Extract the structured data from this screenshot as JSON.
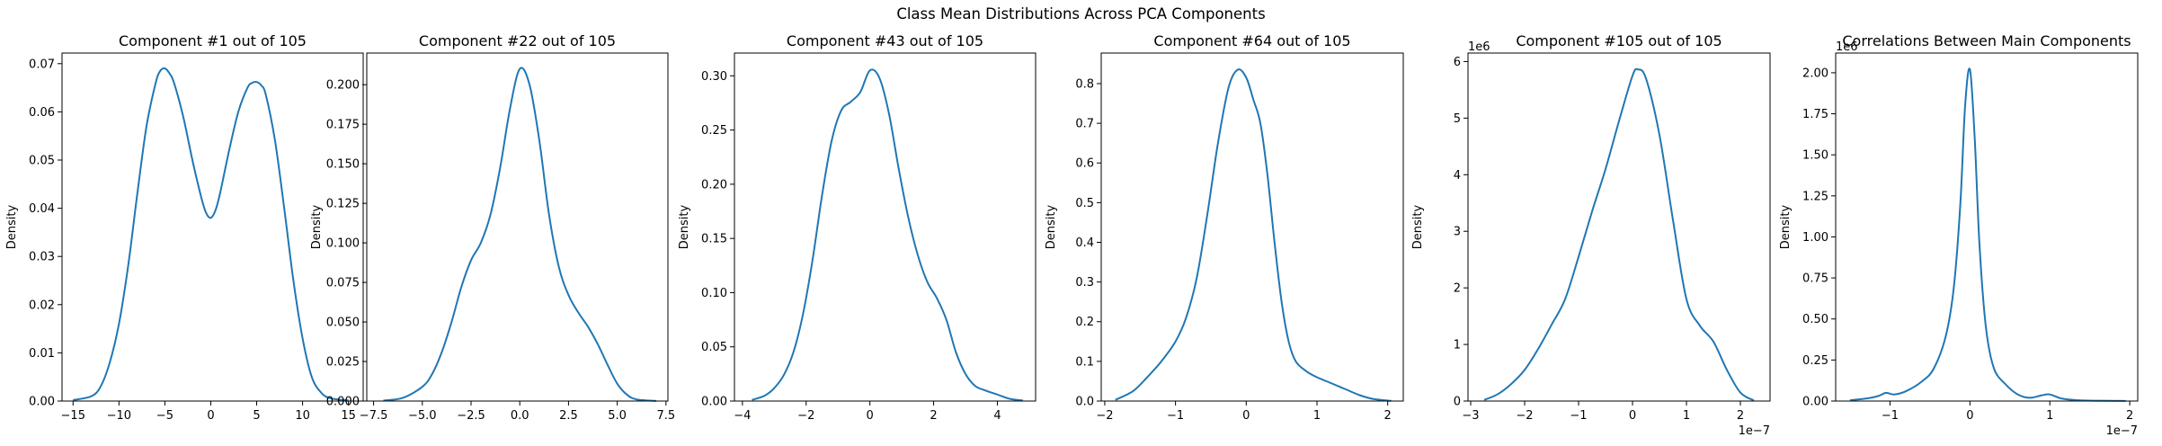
{
  "suptitle": "Class Mean Distributions Across PCA Components",
  "colors": {
    "line": "#1f77b4",
    "axis": "#000000",
    "background": "#ffffff"
  },
  "chart_data": [
    {
      "type": "line",
      "title": "Component #1 out of 105",
      "xlabel": "",
      "ylabel": "Density",
      "xlim": [
        -16.2,
        16.6
      ],
      "ylim": [
        0,
        0.0722
      ],
      "xticks": [
        -15,
        -10,
        -5,
        0,
        5,
        10,
        15
      ],
      "xtick_labels": [
        "−15",
        "−10",
        "−5",
        "0",
        "5",
        "10",
        "15"
      ],
      "yticks": [
        0,
        0.01,
        0.02,
        0.03,
        0.04,
        0.05,
        0.06,
        0.07
      ],
      "ytick_labels": [
        "0.00",
        "0.01",
        "0.02",
        "0.03",
        "0.04",
        "0.05",
        "0.06",
        "0.07"
      ],
      "offset_label_x": "",
      "offset_label_y": "",
      "x": [
        -15,
        -13,
        -12,
        -11,
        -10,
        -9,
        -8,
        -7,
        -6,
        -5.5,
        -5,
        -4.5,
        -4,
        -3,
        -2,
        -1,
        -0.5,
        0,
        0.5,
        1,
        2,
        3,
        4,
        4.5,
        5,
        5.5,
        6,
        7,
        8,
        9,
        10,
        11,
        12,
        13,
        15
      ],
      "y": [
        0.0002,
        0.001,
        0.003,
        0.008,
        0.016,
        0.028,
        0.043,
        0.057,
        0.066,
        0.0685,
        0.069,
        0.068,
        0.066,
        0.059,
        0.05,
        0.042,
        0.039,
        0.038,
        0.0395,
        0.043,
        0.052,
        0.06,
        0.065,
        0.066,
        0.0662,
        0.0655,
        0.0635,
        0.054,
        0.04,
        0.025,
        0.013,
        0.005,
        0.0018,
        0.0006,
        0.0001
      ]
    },
    {
      "type": "line",
      "title": "Component #22 out of 105",
      "xlabel": "",
      "ylabel": "Density",
      "xlim": [
        -7.85,
        7.6
      ],
      "ylim": [
        0,
        0.22
      ],
      "xticks": [
        -7.5,
        -5,
        -2.5,
        0,
        2.5,
        5,
        7.5
      ],
      "xtick_labels": [
        "−7.5",
        "−5.0",
        "−2.5",
        "0.0",
        "2.5",
        "5.0",
        "7.5"
      ],
      "yticks": [
        0,
        0.025,
        0.05,
        0.075,
        0.1,
        0.125,
        0.15,
        0.175,
        0.2
      ],
      "ytick_labels": [
        "0.000",
        "0.025",
        "0.050",
        "0.075",
        "0.100",
        "0.125",
        "0.150",
        "0.175",
        "0.200"
      ],
      "offset_label_x": "",
      "offset_label_y": "",
      "x": [
        -7,
        -6,
        -5,
        -4.5,
        -4,
        -3.5,
        -3,
        -2.5,
        -2,
        -1.5,
        -1,
        -0.5,
        0,
        0.5,
        1,
        1.5,
        2,
        2.5,
        3,
        3.5,
        4,
        4.5,
        5,
        5.5,
        6,
        7
      ],
      "y": [
        0.0003,
        0.002,
        0.009,
        0.017,
        0.031,
        0.05,
        0.072,
        0.089,
        0.1,
        0.118,
        0.148,
        0.185,
        0.21,
        0.2,
        0.165,
        0.118,
        0.085,
        0.067,
        0.056,
        0.047,
        0.036,
        0.023,
        0.011,
        0.004,
        0.001,
        0.0001
      ]
    },
    {
      "type": "line",
      "title": "Component #43 out of 105",
      "xlabel": "",
      "ylabel": "Density",
      "xlim": [
        -4.25,
        5.2
      ],
      "ylim": [
        0,
        0.321
      ],
      "xticks": [
        -4,
        -2,
        0,
        2,
        4
      ],
      "xtick_labels": [
        "−4",
        "−2",
        "0",
        "2",
        "4"
      ],
      "yticks": [
        0,
        0.05,
        0.1,
        0.15,
        0.2,
        0.25,
        0.3
      ],
      "ytick_labels": [
        "0.00",
        "0.05",
        "0.10",
        "0.15",
        "0.20",
        "0.25",
        "0.30"
      ],
      "offset_label_x": "",
      "offset_label_y": "",
      "x": [
        -3.7,
        -3.3,
        -3,
        -2.7,
        -2.4,
        -2.1,
        -1.8,
        -1.5,
        -1.2,
        -0.9,
        -0.6,
        -0.3,
        0,
        0.3,
        0.6,
        0.9,
        1.2,
        1.5,
        1.8,
        2.1,
        2.4,
        2.7,
        3,
        3.3,
        3.6,
        4,
        4.4,
        4.8
      ],
      "y": [
        0.001,
        0.005,
        0.012,
        0.024,
        0.045,
        0.08,
        0.13,
        0.19,
        0.24,
        0.268,
        0.276,
        0.285,
        0.305,
        0.298,
        0.265,
        0.215,
        0.17,
        0.135,
        0.11,
        0.095,
        0.075,
        0.045,
        0.025,
        0.014,
        0.01,
        0.006,
        0.002,
        0.0005
      ]
    },
    {
      "type": "line",
      "title": "Component #64 out of 105",
      "xlabel": "",
      "ylabel": "Density",
      "xlim": [
        -2.05,
        2.22
      ],
      "ylim": [
        0,
        0.877
      ],
      "xticks": [
        -2,
        -1,
        0,
        1,
        2
      ],
      "xtick_labels": [
        "−2",
        "−1",
        "0",
        "1",
        "2"
      ],
      "yticks": [
        0,
        0.1,
        0.2,
        0.3,
        0.4,
        0.5,
        0.6,
        0.7,
        0.8
      ],
      "ytick_labels": [
        "0.0",
        "0.1",
        "0.2",
        "0.3",
        "0.4",
        "0.5",
        "0.6",
        "0.7",
        "0.8"
      ],
      "offset_label_x": "",
      "offset_label_y": "",
      "x": [
        -1.85,
        -1.6,
        -1.4,
        -1.2,
        -1,
        -0.85,
        -0.7,
        -0.55,
        -0.4,
        -0.25,
        -0.12,
        0,
        0.1,
        0.2,
        0.3,
        0.4,
        0.5,
        0.6,
        0.7,
        0.85,
        1,
        1.2,
        1.4,
        1.6,
        1.8,
        2.05
      ],
      "y": [
        0.003,
        0.025,
        0.06,
        0.1,
        0.15,
        0.21,
        0.31,
        0.47,
        0.65,
        0.79,
        0.835,
        0.815,
        0.76,
        0.7,
        0.57,
        0.4,
        0.25,
        0.15,
        0.1,
        0.075,
        0.06,
        0.045,
        0.03,
        0.015,
        0.005,
        0.0005
      ]
    },
    {
      "type": "line",
      "title": "Component #105 out of 105",
      "xlabel": "",
      "ylabel": "Density",
      "xlim": [
        -3.05,
        2.55
      ],
      "ylim": [
        0,
        6.15
      ],
      "xticks": [
        -3,
        -2,
        -1,
        0,
        1,
        2
      ],
      "xtick_labels": [
        "−3",
        "−2",
        "−1",
        "0",
        "1",
        "2"
      ],
      "yticks": [
        0,
        1,
        2,
        3,
        4,
        5,
        6
      ],
      "ytick_labels": [
        "0",
        "1",
        "2",
        "3",
        "4",
        "5",
        "6"
      ],
      "offset_label_x": "1e−7",
      "offset_label_y": "1e6",
      "x": [
        -2.75,
        -2.5,
        -2.25,
        -2,
        -1.75,
        -1.5,
        -1.25,
        -1,
        -0.75,
        -0.5,
        -0.25,
        0,
        0.1,
        0.25,
        0.5,
        0.75,
        1,
        1.25,
        1.5,
        1.75,
        2,
        2.25
      ],
      "y": [
        0.02,
        0.12,
        0.3,
        0.55,
        0.92,
        1.35,
        1.8,
        2.55,
        3.35,
        4.1,
        4.95,
        5.75,
        5.86,
        5.7,
        4.7,
        3.2,
        1.8,
        1.33,
        1.05,
        0.55,
        0.15,
        0.01
      ]
    },
    {
      "type": "line",
      "title": "Correlations Between Main Components",
      "xlabel": "",
      "ylabel": "Density",
      "xlim": [
        -1.68,
        2.1
      ],
      "ylim": [
        0,
        2.12
      ],
      "xticks": [
        -1,
        0,
        1,
        2
      ],
      "xtick_labels": [
        "−1",
        "0",
        "1",
        "2"
      ],
      "yticks": [
        0,
        0.25,
        0.5,
        0.75,
        1,
        1.25,
        1.5,
        1.75,
        2
      ],
      "ytick_labels": [
        "0.00",
        "0.25",
        "0.50",
        "0.75",
        "1.00",
        "1.25",
        "1.50",
        "1.75",
        "2.00"
      ],
      "offset_label_x": "1e−7",
      "offset_label_y": "1e6",
      "x": [
        -1.5,
        -1.3,
        -1.15,
        -1.05,
        -0.95,
        -0.8,
        -0.6,
        -0.45,
        -0.3,
        -0.2,
        -0.12,
        -0.06,
        0,
        0.06,
        0.12,
        0.2,
        0.3,
        0.45,
        0.6,
        0.75,
        0.9,
        1,
        1.15,
        1.35,
        1.6,
        1.95
      ],
      "y": [
        0.005,
        0.015,
        0.03,
        0.05,
        0.04,
        0.06,
        0.12,
        0.2,
        0.4,
        0.7,
        1.2,
        1.8,
        2.02,
        1.6,
        0.95,
        0.45,
        0.2,
        0.1,
        0.04,
        0.02,
        0.035,
        0.04,
        0.015,
        0.005,
        0.002,
        0.0005
      ]
    }
  ]
}
